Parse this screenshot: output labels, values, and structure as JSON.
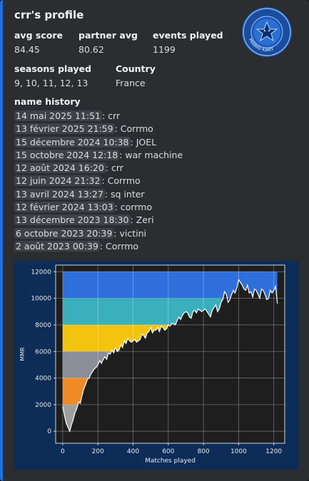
{
  "profile": {
    "title": "crr's profile",
    "emblem_icon": "mario-kart-star-emblem-icon",
    "emblem_text": "MARIO KART",
    "fields": {
      "avg_score": {
        "label": "avg score",
        "value": "84.45"
      },
      "partner_avg": {
        "label": "partner avg",
        "value": "80.62"
      },
      "events_played": {
        "label": "events played",
        "value": "1199"
      },
      "seasons_played": {
        "label": "seasons played",
        "value": "9, 10, 11, 12, 13"
      },
      "country": {
        "label": "Country",
        "value": "France"
      }
    },
    "name_history_label": "name history",
    "name_history": [
      {
        "date": "14 mai 2025 11:51",
        "name": "crr"
      },
      {
        "date": "13 février 2025 21:59",
        "name": "Corrmo"
      },
      {
        "date": "15 décembre 2024 10:38",
        "name": "JOEL"
      },
      {
        "date": "15 octobre 2024 12:18",
        "name": "war machine"
      },
      {
        "date": "12 août 2024 16:20",
        "name": "crr"
      },
      {
        "date": "12 juin 2024 21:32",
        "name": "Corrmo"
      },
      {
        "date": "13 avril 2024 13:27",
        "name": "sq inter"
      },
      {
        "date": "12 février 2024 13:03",
        "name": "corrmo"
      },
      {
        "date": "13 décembre 2023 18:30",
        "name": "Zeri"
      },
      {
        "date": "6 octobre 2023 20:39",
        "name": "victini"
      },
      {
        "date": "2 août 2023 00:39",
        "name": "Corrmo"
      }
    ]
  },
  "colors": {
    "accent": "#1f6fe0",
    "chart_bg": "#0d2c57",
    "rank_iron": "#9e9e9e",
    "rank_bronze": "#f08a24",
    "rank_silver": "#8a8f99",
    "rank_gold": "#f2c40f",
    "rank_platinum": "#3bb0bd",
    "rank_sapphire": "#2e6fdc"
  },
  "chart_data": {
    "type": "line",
    "xlabel": "Matches played",
    "ylabel": "MMR",
    "xlim": [
      -40,
      1262
    ],
    "ylim": [
      -900,
      12500
    ],
    "xticks": [
      0,
      200,
      400,
      600,
      800,
      1000,
      1200
    ],
    "yticks": [
      0,
      2000,
      4000,
      6000,
      8000,
      10000,
      12000
    ],
    "grid": true,
    "rank_bands": [
      {
        "from": 0,
        "to": 2000,
        "color": "#9e9e9e"
      },
      {
        "from": 2000,
        "to": 4000,
        "color": "#f08a24"
      },
      {
        "from": 4000,
        "to": 6000,
        "color": "#8a8f99"
      },
      {
        "from": 6000,
        "to": 8000,
        "color": "#f2c40f"
      },
      {
        "from": 8000,
        "to": 10000,
        "color": "#3bb0bd"
      },
      {
        "from": 10000,
        "to": 12000,
        "color": "#2e6fdc"
      }
    ],
    "series": [
      {
        "x": [
          0,
          10,
          20,
          30,
          40,
          50,
          60,
          70,
          80,
          90,
          100,
          110,
          120,
          130,
          140,
          150,
          160,
          170,
          180,
          190,
          200,
          210,
          220,
          230,
          240,
          250,
          260,
          270,
          280,
          290,
          300,
          310,
          320,
          330,
          340,
          350,
          360,
          370,
          380,
          390,
          400,
          410,
          420,
          430,
          440,
          450,
          460,
          470,
          480,
          490,
          500,
          510,
          520,
          530,
          540,
          550,
          560,
          570,
          580,
          590,
          600,
          610,
          620,
          630,
          640,
          650,
          660,
          670,
          680,
          690,
          700,
          710,
          720,
          730,
          740,
          750,
          760,
          770,
          780,
          790,
          800,
          810,
          820,
          830,
          840,
          850,
          860,
          870,
          880,
          890,
          900,
          910,
          920,
          930,
          940,
          950,
          960,
          970,
          980,
          990,
          1000,
          1010,
          1020,
          1030,
          1040,
          1050,
          1060,
          1070,
          1080,
          1090,
          1100,
          1110,
          1120,
          1130,
          1140,
          1150,
          1160,
          1170,
          1180,
          1190,
          1200,
          1210,
          1220
        ],
        "values": [
          1900,
          1200,
          600,
          300,
          0,
          500,
          900,
          1400,
          1700,
          2200,
          2100,
          2700,
          3200,
          3500,
          3900,
          4000,
          4300,
          4500,
          4700,
          4800,
          5000,
          5300,
          5100,
          5400,
          5600,
          5400,
          5900,
          5800,
          6100,
          5900,
          6300,
          6000,
          6100,
          6500,
          6300,
          6800,
          6600,
          7000,
          6800,
          6700,
          6800,
          6900,
          6700,
          6800,
          6900,
          7300,
          7200,
          7000,
          7400,
          7500,
          7800,
          7400,
          7600,
          7600,
          7800,
          7500,
          7900,
          7800,
          7600,
          7700,
          8000,
          7900,
          8100,
          8100,
          8000,
          8300,
          8600,
          8400,
          8700,
          8900,
          9000,
          8900,
          8600,
          8500,
          9000,
          9100,
          8900,
          9200,
          9100,
          9000,
          9100,
          9200,
          9000,
          8800,
          8600,
          9100,
          9300,
          9500,
          9000,
          9200,
          9700,
          9900,
          10500,
          10300,
          9700,
          9900,
          10300,
          10600,
          10400,
          10800,
          11400,
          11200,
          11000,
          10700,
          10600,
          11000,
          10400,
          10500,
          10100,
          10700,
          10600,
          10300,
          10000,
          10700,
          10600,
          10300,
          9900,
          10000,
          10600,
          10400,
          10600,
          10900,
          9600
        ]
      }
    ]
  }
}
